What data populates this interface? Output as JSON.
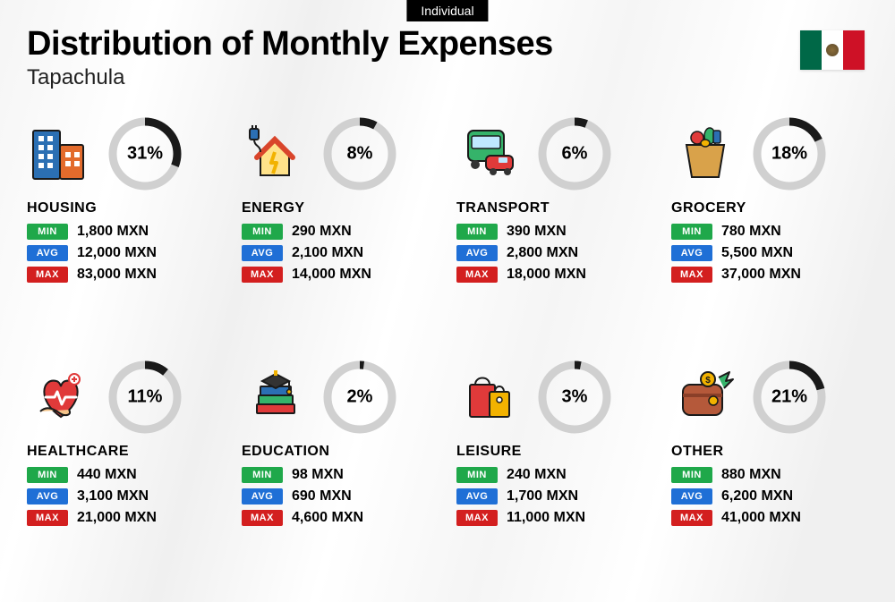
{
  "badge": "Individual",
  "title": "Distribution of Monthly Expenses",
  "subtitle": "Tapachula",
  "country_flag": "mexico",
  "currency": "MXN",
  "colors": {
    "ring_bg": "#d0d0d0",
    "ring_fg": "#1a1a1a",
    "min_tag": "#1fa84a",
    "avg_tag": "#1f6fd6",
    "max_tag": "#d31f1f",
    "background": "#f5f5f5",
    "text": "#000000"
  },
  "labels": {
    "min": "MIN",
    "avg": "AVG",
    "max": "MAX"
  },
  "ring": {
    "radius": 36,
    "stroke_width": 9
  },
  "categories": [
    {
      "key": "housing",
      "name": "HOUSING",
      "percent": 31,
      "min": "1,800 MXN",
      "avg": "12,000 MXN",
      "max": "83,000 MXN",
      "icon": "housing-icon"
    },
    {
      "key": "energy",
      "name": "ENERGY",
      "percent": 8,
      "min": "290 MXN",
      "avg": "2,100 MXN",
      "max": "14,000 MXN",
      "icon": "energy-icon"
    },
    {
      "key": "transport",
      "name": "TRANSPORT",
      "percent": 6,
      "min": "390 MXN",
      "avg": "2,800 MXN",
      "max": "18,000 MXN",
      "icon": "transport-icon"
    },
    {
      "key": "grocery",
      "name": "GROCERY",
      "percent": 18,
      "min": "780 MXN",
      "avg": "5,500 MXN",
      "max": "37,000 MXN",
      "icon": "grocery-icon"
    },
    {
      "key": "healthcare",
      "name": "HEALTHCARE",
      "percent": 11,
      "min": "440 MXN",
      "avg": "3,100 MXN",
      "max": "21,000 MXN",
      "icon": "healthcare-icon"
    },
    {
      "key": "education",
      "name": "EDUCATION",
      "percent": 2,
      "min": "98 MXN",
      "avg": "690 MXN",
      "max": "4,600 MXN",
      "icon": "education-icon"
    },
    {
      "key": "leisure",
      "name": "LEISURE",
      "percent": 3,
      "min": "240 MXN",
      "avg": "1,700 MXN",
      "max": "11,000 MXN",
      "icon": "leisure-icon"
    },
    {
      "key": "other",
      "name": "OTHER",
      "percent": 21,
      "min": "880 MXN",
      "avg": "6,200 MXN",
      "max": "41,000 MXN",
      "icon": "other-icon"
    }
  ]
}
